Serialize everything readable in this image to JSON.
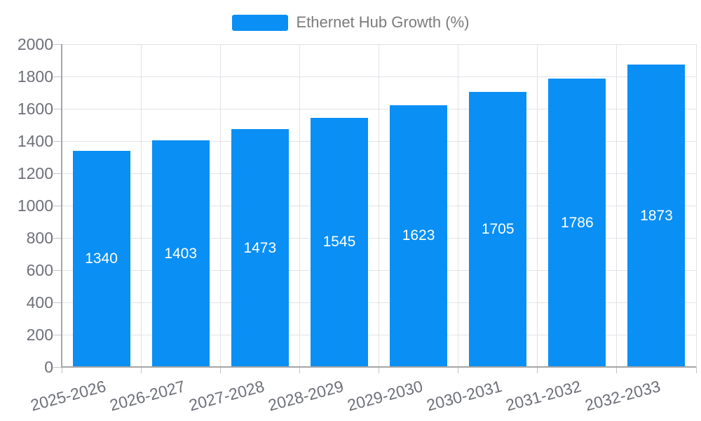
{
  "chart_data": {
    "type": "bar",
    "title": "Ethernet Hub Growth (%)",
    "categories": [
      "2025-2026",
      "2026-2027",
      "2027-2028",
      "2028-2029",
      "2029-2030",
      "2030-2031",
      "2031-2032",
      "2032-2033"
    ],
    "series": [
      {
        "name": "Ethernet Hub Growth (%)",
        "values": [
          1340,
          1403,
          1473,
          1545,
          1623,
          1705,
          1786,
          1873
        ]
      }
    ],
    "xlabel": "",
    "ylabel": "",
    "ylim": [
      0,
      2000
    ],
    "ytick_step": 200,
    "grid": true,
    "legend_position": "top-center",
    "bar_color": "#0a8ff5",
    "value_label_color": "#ffffff",
    "value_labels_inside": true
  },
  "legend": {
    "label": "Ethernet Hub Growth (%)"
  }
}
